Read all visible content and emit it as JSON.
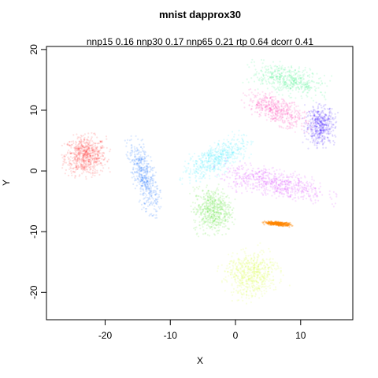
{
  "chart_data": {
    "type": "scatter",
    "title": "mnist dapprox30",
    "subtitle": "nnp15 0.16 nnp30 0.17 nnp65 0.21 rtp 0.64 dcorr 0.41",
    "xlabel": "X",
    "ylabel": "Y",
    "xlim": [
      -29,
      18
    ],
    "ylim": [
      -24.5,
      20.5
    ],
    "xticks": [
      -20,
      -10,
      0,
      10
    ],
    "yticks": [
      -20,
      -10,
      0,
      10,
      20
    ],
    "grid": false,
    "legend": "none",
    "clusters": [
      {
        "color": "#ff0000",
        "center": [
          -23,
          2.5
        ],
        "spread": [
          3.5,
          3.5
        ],
        "angle": 0,
        "n": 700,
        "opacity": 0.12
      },
      {
        "color": "#0066ff",
        "center": [
          -14,
          -1
        ],
        "spread": [
          1.8,
          6.5
        ],
        "angle": 15,
        "n": 500,
        "opacity": 0.14
      },
      {
        "color": "#00e5ff",
        "center": [
          -3,
          2
        ],
        "spread": [
          6,
          2.5
        ],
        "angle": 30,
        "n": 550,
        "opacity": 0.12
      },
      {
        "color": "#33dd00",
        "center": [
          -3.5,
          -6.5
        ],
        "spread": [
          3.2,
          4
        ],
        "angle": 0,
        "n": 600,
        "opacity": 0.12
      },
      {
        "color": "#cc00ff",
        "center": [
          6,
          -2
        ],
        "spread": [
          9,
          2.5
        ],
        "angle": -12,
        "n": 650,
        "opacity": 0.12
      },
      {
        "color": "#00ee66",
        "center": [
          8,
          15
        ],
        "spread": [
          6,
          2.5
        ],
        "angle": -15,
        "n": 500,
        "opacity": 0.12
      },
      {
        "color": "#ff0099",
        "center": [
          6.5,
          10
        ],
        "spread": [
          5.5,
          2.2
        ],
        "angle": -25,
        "n": 500,
        "opacity": 0.12
      },
      {
        "color": "#3300ff",
        "center": [
          13,
          7.5
        ],
        "spread": [
          2.5,
          3.5
        ],
        "angle": 0,
        "n": 500,
        "opacity": 0.14
      },
      {
        "color": "#ff8800",
        "center": [
          6.5,
          -8.7
        ],
        "spread": [
          2.2,
          0.35
        ],
        "angle": -5,
        "n": 300,
        "opacity": 0.35
      },
      {
        "color": "#ccff00",
        "center": [
          2.5,
          -17
        ],
        "spread": [
          4.5,
          4
        ],
        "angle": 20,
        "n": 650,
        "opacity": 0.12
      }
    ]
  }
}
